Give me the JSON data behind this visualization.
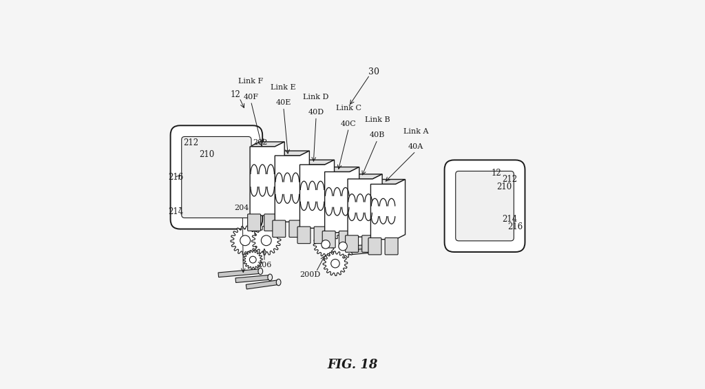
{
  "title": "FIG. 18",
  "title_fontsize": 13,
  "title_style": "italic",
  "title_fontfamily": "serif",
  "background_color": "#f5f5f5",
  "line_color": "#1a1a1a",
  "text_color": "#1a1a1a",
  "figsize": [
    10.24,
    5.65
  ],
  "dpi": 100,
  "labels": {
    "216_left": [
      0.045,
      0.52,
      "216"
    ],
    "212_left": [
      0.075,
      0.62,
      "212"
    ],
    "210_left": [
      0.12,
      0.58,
      "210"
    ],
    "214_left": [
      0.045,
      0.43,
      "214"
    ],
    "12_left": [
      0.185,
      0.72,
      "12"
    ],
    "linkF_label": [
      0.215,
      0.76,
      "Link F"
    ],
    "40F": [
      0.21,
      0.7,
      "40F"
    ],
    "linkE_label": [
      0.315,
      0.74,
      "Link E"
    ],
    "40E": [
      0.305,
      0.68,
      "40E"
    ],
    "linkD_label": [
      0.39,
      0.71,
      "Link D"
    ],
    "40D": [
      0.385,
      0.65,
      "40D"
    ],
    "linkC_label": [
      0.49,
      0.67,
      "Link C"
    ],
    "40C": [
      0.485,
      0.62,
      "40C"
    ],
    "linkB_label": [
      0.565,
      0.64,
      "Link B"
    ],
    "40B": [
      0.56,
      0.59,
      "40B"
    ],
    "linkA_label": [
      0.68,
      0.6,
      "Link A"
    ],
    "40A": [
      0.66,
      0.54,
      "40A"
    ],
    "30": [
      0.54,
      0.82,
      "30"
    ],
    "206": [
      0.275,
      0.345,
      "206"
    ],
    "200D": [
      0.385,
      0.32,
      "200D"
    ],
    "202": [
      0.255,
      0.62,
      "202"
    ],
    "204": [
      0.215,
      0.46,
      "204"
    ],
    "12_right": [
      0.865,
      0.55,
      "12"
    ],
    "210_right": [
      0.875,
      0.5,
      "210"
    ],
    "212_right": [
      0.885,
      0.55,
      "212"
    ],
    "214_right": [
      0.895,
      0.43,
      "214"
    ],
    "216_right": [
      0.905,
      0.39,
      "216"
    ]
  }
}
